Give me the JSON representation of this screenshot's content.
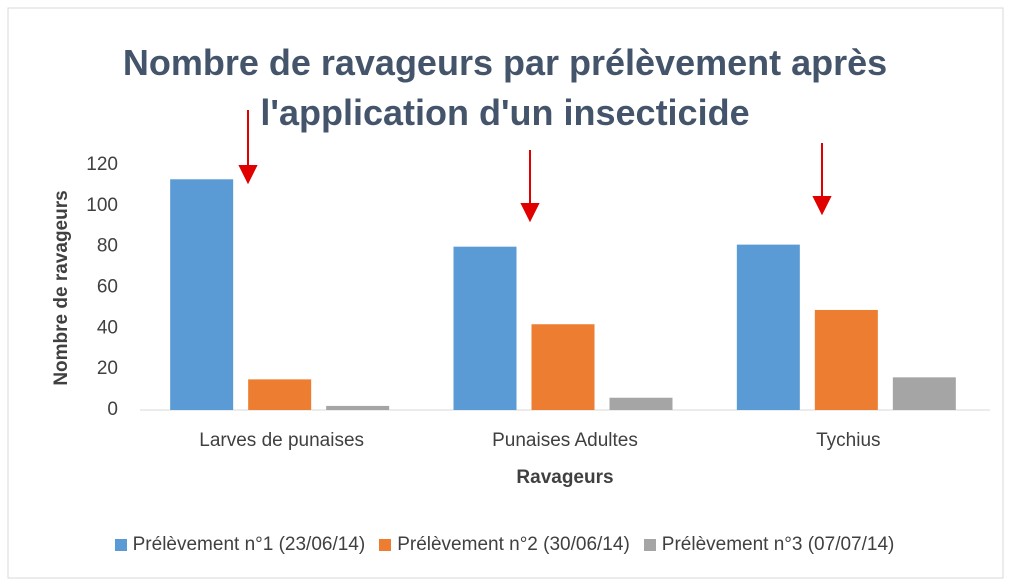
{
  "chart_data": {
    "type": "bar",
    "title": "Nombre de ravageurs par prélèvement après l'application d'un insecticide",
    "x_label": "Ravageurs",
    "y_label": "Nombre de ravageurs",
    "categories": [
      "Larves de punaises",
      "Punaises Adultes",
      "Tychius"
    ],
    "series": [
      {
        "name": "Prélèvement n°1 (23/06/14)",
        "color": "#5b9bd5",
        "values": [
          113,
          80,
          81
        ]
      },
      {
        "name": "Prélèvement n°2 (30/06/14)",
        "color": "#ed7d31",
        "values": [
          15,
          42,
          49
        ]
      },
      {
        "name": "Prélèvement n°3 (07/07/14)",
        "color": "#a5a5a5",
        "values": [
          2,
          6,
          16
        ]
      }
    ],
    "ylim": [
      0,
      120
    ],
    "yticks": [
      0,
      20,
      40,
      60,
      80,
      100,
      120
    ],
    "grid": false,
    "legend": "bottom"
  }
}
